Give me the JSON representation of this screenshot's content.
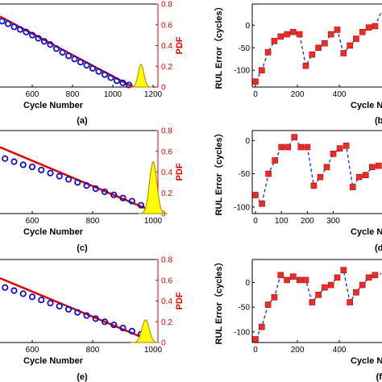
{
  "colors": {
    "axis": "#000000",
    "pdf_axis": "#e00000",
    "marker_blue": "#1010c8",
    "fit_red": "#e00000",
    "pdf_fill": "#ffff00",
    "error_line": "#1f3fdc",
    "error_marker": "#ee2b24"
  },
  "panels": {
    "a": "(a)",
    "b": "(b)",
    "c": "(c)",
    "d": "(d)",
    "e": "(e)",
    "f": "(f)"
  },
  "chart_data": [
    {
      "id": "a",
      "type": "scatter",
      "xlabel": "Cycle Number",
      "ylabel_right": "PDF",
      "xlim": [
        420,
        1200
      ],
      "xticks": [
        "600",
        "800",
        "1000",
        "1200"
      ],
      "y2lim": [
        0,
        0.8
      ],
      "y2ticks": [
        "0",
        "0.2",
        "0.4",
        "0.6",
        "0.8"
      ],
      "series": [
        {
          "kind": "observed",
          "x": [
            420,
            450,
            480,
            510,
            540,
            570,
            600,
            630,
            660,
            690,
            720,
            750,
            780,
            810,
            840,
            870,
            900,
            930,
            960,
            990,
            1020,
            1050,
            1080
          ],
          "y": [
            0.66,
            0.635,
            0.61,
            0.58,
            0.555,
            0.53,
            0.5,
            0.47,
            0.44,
            0.41,
            0.37,
            0.335,
            0.3,
            0.27,
            0.24,
            0.21,
            0.18,
            0.15,
            0.12,
            0.09,
            0.06,
            0.04,
            0.02
          ]
        },
        {
          "kind": "fit",
          "x": [
            420,
            1100
          ],
          "y": [
            0.68,
            0.0
          ]
        },
        {
          "kind": "pdf",
          "mean": 1140,
          "sd": 14,
          "peak": 0.22
        }
      ]
    },
    {
      "id": "b",
      "type": "line",
      "xlabel": "Cycle Number",
      "ylabel": "RUL Error（cycles）",
      "xlim": [
        0,
        680
      ],
      "ylim": [
        -130,
        40
      ],
      "xticks": [
        "0",
        "200",
        "400",
        "600"
      ],
      "yticks": [
        "-100",
        "-50",
        "0"
      ],
      "x": [
        0,
        30,
        60,
        90,
        120,
        150,
        180,
        210,
        240,
        270,
        300,
        330,
        360,
        390,
        420,
        450,
        480,
        510,
        540,
        570,
        600,
        630,
        660
      ],
      "y": [
        -125,
        -100,
        -60,
        -35,
        -25,
        -20,
        -15,
        -20,
        -90,
        -65,
        -50,
        -40,
        -20,
        -10,
        -62,
        -45,
        -30,
        -15,
        -5,
        -2,
        30,
        30,
        25
      ]
    },
    {
      "id": "c",
      "type": "scatter",
      "xlabel": "Cycle Number",
      "ylabel_right": "PDF",
      "xlim": [
        420,
        1100
      ],
      "xticks": [
        "600",
        "800",
        "1000"
      ],
      "y2lim": [
        0,
        0.8
      ],
      "y2ticks": [
        "0",
        "0.2",
        "0.4",
        "0.6",
        "0.8"
      ],
      "series": [
        {
          "kind": "observed",
          "x": [
            420,
            450,
            480,
            510,
            540,
            570,
            600,
            630,
            660,
            690,
            720,
            750,
            780,
            810,
            840,
            870,
            900,
            930,
            960,
            990
          ],
          "y": [
            0.6,
            0.58,
            0.56,
            0.53,
            0.5,
            0.47,
            0.45,
            0.42,
            0.39,
            0.36,
            0.33,
            0.3,
            0.27,
            0.24,
            0.21,
            0.18,
            0.15,
            0.12,
            0.08,
            0.04
          ]
        },
        {
          "kind": "fit",
          "x": [
            420,
            1000
          ],
          "y": [
            0.64,
            0.02
          ]
        },
        {
          "kind": "pdf",
          "mean": 1000,
          "sd": 12,
          "peak": 0.5
        }
      ]
    },
    {
      "id": "d",
      "type": "line",
      "xlabel": "Cycle Number",
      "ylabel": "RUL Error（cycles）",
      "xlim": [
        0,
        550
      ],
      "ylim": [
        -105,
        10
      ],
      "xticks": [
        "0",
        "100",
        "200",
        "300"
      ],
      "yticks": [
        "-100",
        "-50",
        "0"
      ],
      "x": [
        0,
        25,
        50,
        75,
        100,
        125,
        150,
        175,
        200,
        225,
        250,
        275,
        300,
        325,
        350,
        375,
        400,
        425,
        450,
        475,
        500,
        525,
        550
      ],
      "y": [
        -82,
        -95,
        -50,
        -30,
        -10,
        -10,
        5,
        -10,
        -10,
        -68,
        -55,
        -40,
        -20,
        -12,
        -8,
        -70,
        -55,
        -52,
        -40,
        -38,
        -30,
        -20,
        -10
      ]
    },
    {
      "id": "e",
      "type": "scatter",
      "xlabel": "Cycle Number",
      "ylabel_right": "PDF",
      "xlim": [
        420,
        1100
      ],
      "xticks": [
        "600",
        "800",
        "1000"
      ],
      "y2lim": [
        0,
        0.8
      ],
      "y2ticks": [
        "0",
        "0.2",
        "0.4",
        "0.6",
        "0.8"
      ],
      "series": [
        {
          "kind": "observed",
          "x": [
            420,
            450,
            480,
            510,
            540,
            570,
            600,
            630,
            660,
            690,
            720,
            750,
            780,
            810,
            840,
            870,
            900,
            930,
            960
          ],
          "y": [
            0.6,
            0.58,
            0.56,
            0.53,
            0.5,
            0.47,
            0.44,
            0.41,
            0.38,
            0.35,
            0.32,
            0.29,
            0.26,
            0.23,
            0.2,
            0.17,
            0.14,
            0.11,
            0.08
          ]
        },
        {
          "kind": "fit",
          "x": [
            420,
            980
          ],
          "y": [
            0.62,
            0.03
          ]
        },
        {
          "kind": "pdf",
          "mean": 975,
          "sd": 12,
          "peak": 0.22
        }
      ]
    },
    {
      "id": "f",
      "type": "line",
      "xlabel": "Cycle Number",
      "ylabel": "RUL Error（cycles）",
      "xlim": [
        0,
        680
      ],
      "ylim": [
        -115,
        40
      ],
      "xticks": [
        "0",
        "200",
        "400"
      ],
      "yticks": [
        "-100",
        "-50",
        "0"
      ],
      "x": [
        0,
        30,
        60,
        90,
        120,
        150,
        180,
        210,
        240,
        270,
        300,
        330,
        360,
        390,
        420,
        450,
        480,
        510,
        540,
        570,
        600,
        630,
        660
      ],
      "y": [
        -115,
        -90,
        -45,
        -30,
        15,
        5,
        12,
        5,
        5,
        -40,
        -25,
        -10,
        -5,
        10,
        25,
        -40,
        -20,
        -5,
        10,
        15,
        18,
        20,
        20
      ]
    }
  ]
}
